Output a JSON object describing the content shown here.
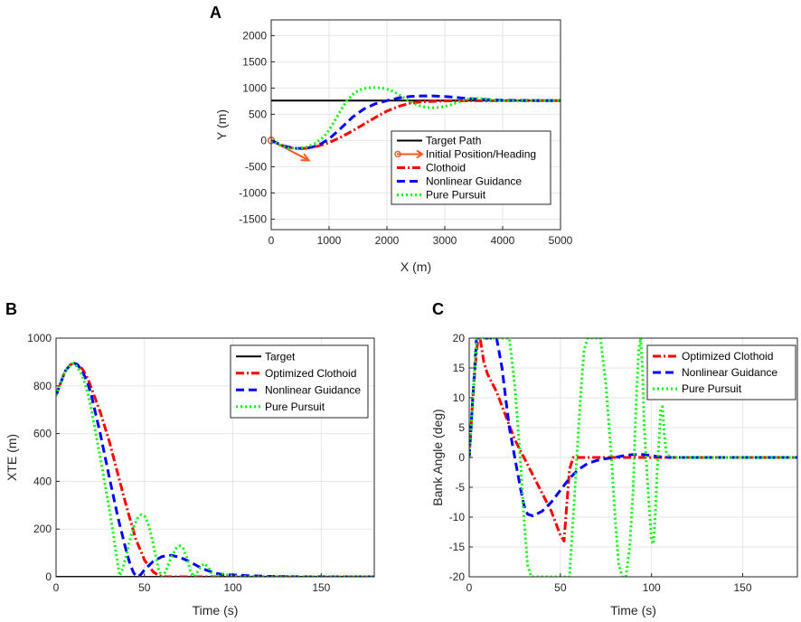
{
  "chart_data": [
    {
      "id": "A",
      "panel_label": "A",
      "type": "line",
      "xlabel": "X (m)",
      "ylabel": "Y (m)",
      "xlim": [
        0,
        5000
      ],
      "ylim": [
        -1700,
        2300
      ],
      "xticks": [
        0,
        1000,
        2000,
        3000,
        4000,
        5000
      ],
      "yticks": [
        -1500,
        -1000,
        -500,
        0,
        500,
        1000,
        1500,
        2000
      ],
      "grid": true,
      "legend_position": "bottom-right",
      "series": [
        {
          "name": "Target Path",
          "color": "#000000",
          "style": "solid",
          "x": [
            0,
            5000
          ],
          "y": [
            760,
            760
          ]
        },
        {
          "name": "Initial Position/Heading",
          "color": "#ff5a1e",
          "style": "arrow",
          "x": [
            0,
            650
          ],
          "y": [
            0,
            -380
          ]
        },
        {
          "name": "Clothoid",
          "color": "#ff0000",
          "style": "dashdot",
          "x": [
            0,
            200,
            400,
            600,
            800,
            1000,
            1200,
            1400,
            1600,
            1800,
            2000,
            2200,
            2400,
            2600,
            3000,
            3500,
            4000,
            4500,
            5000
          ],
          "y": [
            0,
            -100,
            -150,
            -150,
            -110,
            -40,
            60,
            180,
            310,
            440,
            560,
            650,
            710,
            740,
            755,
            758,
            760,
            760,
            760
          ]
        },
        {
          "name": "Nonlinear Guidance",
          "color": "#0000ff",
          "style": "dashed",
          "x": [
            0,
            200,
            400,
            600,
            800,
            1000,
            1200,
            1400,
            1600,
            1800,
            2000,
            2200,
            2400,
            2600,
            2800,
            3000,
            3200,
            3400,
            3600,
            3800,
            4000,
            4500,
            5000
          ],
          "y": [
            0,
            -100,
            -150,
            -150,
            -100,
            30,
            230,
            440,
            600,
            700,
            760,
            810,
            840,
            850,
            850,
            840,
            820,
            800,
            785,
            775,
            768,
            762,
            760
          ]
        },
        {
          "name": "Pure Pursuit",
          "color": "#00ff00",
          "style": "dotted",
          "x": [
            0,
            150,
            300,
            450,
            600,
            750,
            900,
            1000,
            1100,
            1200,
            1300,
            1400,
            1500,
            1600,
            1700,
            1800,
            1900,
            2000,
            2100,
            2200,
            2300,
            2400,
            2500,
            2600,
            2700,
            2800,
            2900,
            3000,
            3100,
            3200,
            3300,
            3400,
            3500,
            3600,
            3700,
            3800,
            3900,
            4000,
            4200,
            4500,
            5000
          ],
          "y": [
            0,
            -90,
            -145,
            -150,
            -130,
            -60,
            60,
            200,
            380,
            570,
            750,
            870,
            950,
            990,
            1005,
            1010,
            1000,
            980,
            940,
            880,
            810,
            740,
            690,
            650,
            630,
            625,
            630,
            650,
            680,
            720,
            760,
            790,
            805,
            800,
            790,
            775,
            765,
            760,
            758,
            760,
            760
          ]
        }
      ]
    },
    {
      "id": "B",
      "panel_label": "B",
      "type": "line",
      "xlabel": "Time (s)",
      "ylabel": "XTE (m)",
      "xlim": [
        0,
        180
      ],
      "ylim": [
        0,
        1000
      ],
      "xticks": [
        0,
        50,
        100,
        150
      ],
      "yticks": [
        0,
        200,
        400,
        600,
        800,
        1000
      ],
      "grid": true,
      "legend_position": "top-right",
      "series": [
        {
          "name": "Target",
          "color": "#000000",
          "style": "solid",
          "x": [
            0,
            180
          ],
          "y": [
            0,
            0
          ]
        },
        {
          "name": "Optimized Clothoid",
          "color": "#ff0000",
          "style": "dashdot",
          "x": [
            0,
            2,
            5,
            8,
            10,
            12,
            15,
            18,
            20,
            25,
            30,
            35,
            40,
            45,
            50,
            55,
            58,
            60,
            62,
            180
          ],
          "y": [
            760,
            800,
            860,
            888,
            895,
            890,
            870,
            830,
            790,
            690,
            570,
            430,
            290,
            160,
            70,
            20,
            6,
            2,
            0,
            0
          ]
        },
        {
          "name": "Nonlinear Guidance",
          "color": "#0000ff",
          "style": "dashed",
          "x": [
            0,
            2,
            5,
            8,
            10,
            12,
            15,
            18,
            20,
            25,
            30,
            35,
            40,
            42,
            44,
            46,
            48,
            50,
            55,
            60,
            65,
            70,
            75,
            80,
            85,
            90,
            95,
            100,
            105,
            110,
            120,
            130,
            140,
            150,
            180
          ],
          "y": [
            760,
            800,
            860,
            888,
            895,
            890,
            860,
            810,
            760,
            600,
            420,
            250,
            100,
            50,
            15,
            0,
            10,
            30,
            65,
            85,
            90,
            82,
            65,
            45,
            28,
            15,
            8,
            8,
            6,
            4,
            2,
            1,
            0,
            0,
            0
          ]
        },
        {
          "name": "Pure Pursuit",
          "color": "#00ff00",
          "style": "dotted",
          "x": [
            0,
            2,
            5,
            8,
            10,
            12,
            15,
            18,
            20,
            25,
            30,
            33,
            35,
            36,
            38,
            40,
            42,
            44,
            46,
            48,
            50,
            52,
            54,
            56,
            58,
            60,
            62,
            65,
            68,
            70,
            72,
            74,
            76,
            78,
            80,
            82,
            84,
            86,
            88,
            90,
            92,
            94,
            96,
            98,
            100,
            105,
            110,
            120,
            180
          ],
          "y": [
            760,
            800,
            860,
            888,
            895,
            880,
            840,
            770,
            700,
            500,
            290,
            150,
            50,
            5,
            40,
            100,
            160,
            210,
            245,
            260,
            255,
            225,
            170,
            100,
            30,
            0,
            20,
            80,
            120,
            130,
            118,
            80,
            25,
            0,
            20,
            45,
            55,
            40,
            15,
            0,
            5,
            12,
            10,
            5,
            3,
            2,
            1,
            0,
            0
          ]
        }
      ]
    },
    {
      "id": "C",
      "panel_label": "C",
      "type": "line",
      "xlabel": "Time (s)",
      "ylabel": "Bank Angle (deg)",
      "xlim": [
        0,
        180
      ],
      "ylim": [
        -20,
        20
      ],
      "xticks": [
        0,
        50,
        100,
        150
      ],
      "yticks": [
        -20,
        -15,
        -10,
        -5,
        0,
        5,
        10,
        15,
        20
      ],
      "grid": true,
      "legend_position": "top-right",
      "series": [
        {
          "name": "Optimized Clothoid",
          "color": "#ff0000",
          "style": "dashdot",
          "x": [
            0,
            2,
            4,
            5,
            6,
            8,
            10,
            15,
            20,
            25,
            30,
            35,
            40,
            45,
            50,
            52,
            53,
            55,
            57,
            60,
            100,
            180
          ],
          "y": [
            0,
            10,
            18,
            20,
            20,
            16,
            14,
            11,
            7,
            3,
            0,
            -3,
            -6,
            -9,
            -13,
            -14,
            -10,
            -2,
            0,
            0,
            0,
            0
          ]
        },
        {
          "name": "Nonlinear Guidance",
          "color": "#0000ff",
          "style": "dashed",
          "x": [
            0,
            2,
            4,
            5,
            8,
            15,
            18,
            20,
            22,
            25,
            28,
            30,
            32,
            35,
            40,
            45,
            50,
            55,
            60,
            65,
            70,
            75,
            80,
            85,
            90,
            95,
            100,
            105,
            110,
            180
          ],
          "y": [
            0,
            10,
            20,
            20,
            20,
            20,
            15,
            10,
            5,
            0,
            -5,
            -8,
            -9.5,
            -9.8,
            -9,
            -7.5,
            -5.5,
            -3.5,
            -2,
            -1,
            -0.5,
            -0.2,
            0,
            0.3,
            0.5,
            0.5,
            0.3,
            0.1,
            0,
            0
          ]
        },
        {
          "name": "Pure Pursuit",
          "color": "#00ff00",
          "style": "dotted",
          "x": [
            0,
            2,
            4,
            5,
            20,
            22,
            25,
            28,
            30,
            32,
            34,
            35,
            50,
            52,
            55,
            57,
            59,
            61,
            63,
            65,
            70,
            72,
            75,
            78,
            80,
            82,
            84,
            86,
            88,
            90,
            91,
            92,
            93,
            94,
            95,
            96,
            98,
            100,
            101,
            102,
            103,
            104,
            105,
            106,
            107,
            108,
            110,
            120,
            180
          ],
          "y": [
            0,
            10,
            20,
            20,
            20,
            20,
            12,
            0,
            -10,
            -18,
            -20,
            -20,
            -20,
            -20,
            -20,
            -10,
            0,
            10,
            18,
            20,
            20,
            20,
            12,
            0,
            -10,
            -18,
            -20,
            -20,
            -15,
            -5,
            5,
            12,
            18,
            20,
            15,
            5,
            -5,
            -14,
            -14.5,
            -10,
            -3,
            2,
            8,
            8.5,
            4,
            1,
            0,
            0,
            0
          ]
        }
      ]
    }
  ]
}
